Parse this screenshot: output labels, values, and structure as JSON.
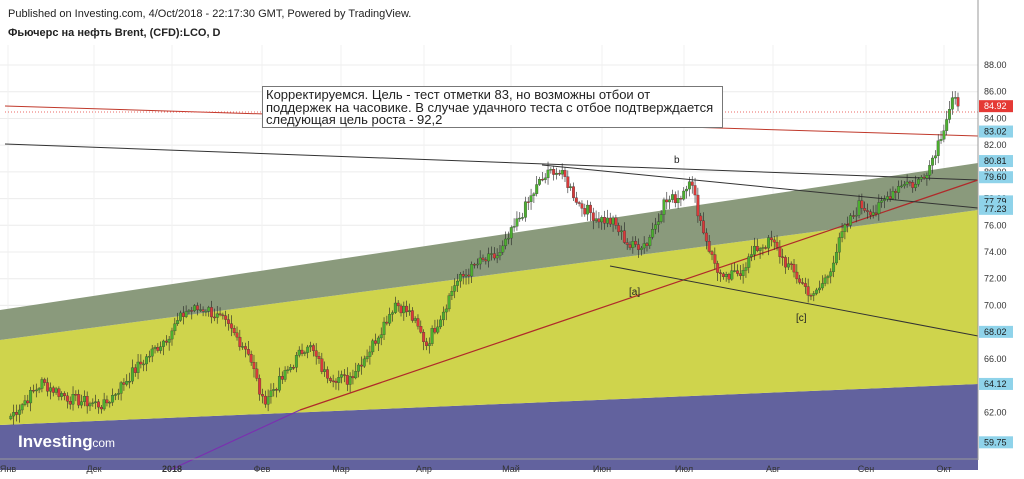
{
  "header": {
    "published": "Published on Investing.com, 4/Oct/2018 - 22:17:30 GMT, Powered by TradingView.",
    "symbol": "Фьючерс на нефть Brent, (CFD):LCO, D"
  },
  "annotation": "Корректируемся. Цель - тест отметки 83, но возможны отбои от поддержек на часовике. В случае удачного теста с отбое подтверждается следующая цель роста - 92,2",
  "logo": {
    "word": "Investing",
    "suffix": ".com"
  },
  "colors": {
    "bull": "#4caf2f",
    "bear": "#d83a3a",
    "green_channel": "#8a9a7c",
    "yellow_channel": "#cfd44c",
    "purple_zone": "#62629e",
    "red_line": "#c0392b",
    "last_price_badge": "#e53935",
    "level_badge": "#8fd3ea"
  },
  "chart_data": {
    "type": "candlestick",
    "ylim": [
      58.5,
      89.5
    ],
    "yticks": [
      "88.00",
      "86.00",
      "84.00",
      "82.00",
      "80.00",
      "78.00",
      "76.00",
      "74.00",
      "72.00",
      "70.00",
      "68.00",
      "66.00",
      "64.00",
      "62.00"
    ],
    "xticks": [
      "Янв",
      "Дек",
      "2018",
      "Фев",
      "Мар",
      "Апр",
      "Май",
      "Июн",
      "Июл",
      "Авг",
      "Сен",
      "Окт"
    ],
    "levels": [
      {
        "label": "84.92",
        "value": 84.92,
        "kind": "last"
      },
      {
        "label": "83.02",
        "value": 83.02,
        "kind": "level"
      },
      {
        "label": "80.81",
        "value": 80.81,
        "kind": "level"
      },
      {
        "label": "79.60",
        "value": 79.6,
        "kind": "level"
      },
      {
        "label": "77.79",
        "value": 77.79,
        "kind": "level"
      },
      {
        "label": "77.23",
        "value": 77.23,
        "kind": "level"
      },
      {
        "label": "68.02",
        "value": 68.02,
        "kind": "level"
      },
      {
        "label": "64.12",
        "value": 64.12,
        "kind": "level"
      },
      {
        "label": "59.75",
        "value": 59.75,
        "kind": "level"
      }
    ],
    "wave_labels": [
      "b",
      "[a]",
      "[c]"
    ],
    "anchors": [
      [
        0,
        61.5
      ],
      [
        12,
        64.2
      ],
      [
        22,
        63.0
      ],
      [
        34,
        62.5
      ],
      [
        45,
        65.2
      ],
      [
        56,
        67.6
      ],
      [
        63,
        69.6
      ],
      [
        70,
        69.8
      ],
      [
        76,
        68.8
      ],
      [
        85,
        66.6
      ],
      [
        90,
        62.8
      ],
      [
        97,
        64.5
      ],
      [
        106,
        67.2
      ],
      [
        112,
        64.9
      ],
      [
        120,
        64.4
      ],
      [
        128,
        66.7
      ],
      [
        137,
        70.2
      ],
      [
        142,
        69.4
      ],
      [
        148,
        67.1
      ],
      [
        153,
        69.2
      ],
      [
        158,
        71.6
      ],
      [
        166,
        73.1
      ],
      [
        174,
        73.8
      ],
      [
        181,
        76.6
      ],
      [
        188,
        79.2
      ],
      [
        193,
        80.2
      ],
      [
        197,
        79.5
      ],
      [
        202,
        77.6
      ],
      [
        208,
        76.6
      ],
      [
        214,
        76.2
      ],
      [
        220,
        74.4
      ],
      [
        226,
        74.7
      ],
      [
        232,
        77.7
      ],
      [
        238,
        78.2
      ],
      [
        241,
        79.6
      ],
      [
        245,
        76.3
      ],
      [
        249,
        73.6
      ],
      [
        253,
        71.8
      ],
      [
        259,
        72.6
      ],
      [
        265,
        74.3
      ],
      [
        270,
        74.8
      ],
      [
        275,
        73.2
      ],
      [
        281,
        71.6
      ],
      [
        285,
        70.6
      ],
      [
        290,
        72.3
      ],
      [
        295,
        75.3
      ],
      [
        301,
        77.5
      ],
      [
        307,
        77.0
      ],
      [
        312,
        78.4
      ],
      [
        317,
        79.3
      ],
      [
        321,
        79.0
      ],
      [
        326,
        80.5
      ],
      [
        330,
        82.8
      ],
      [
        334,
        85.4
      ],
      [
        336,
        84.92
      ]
    ]
  }
}
